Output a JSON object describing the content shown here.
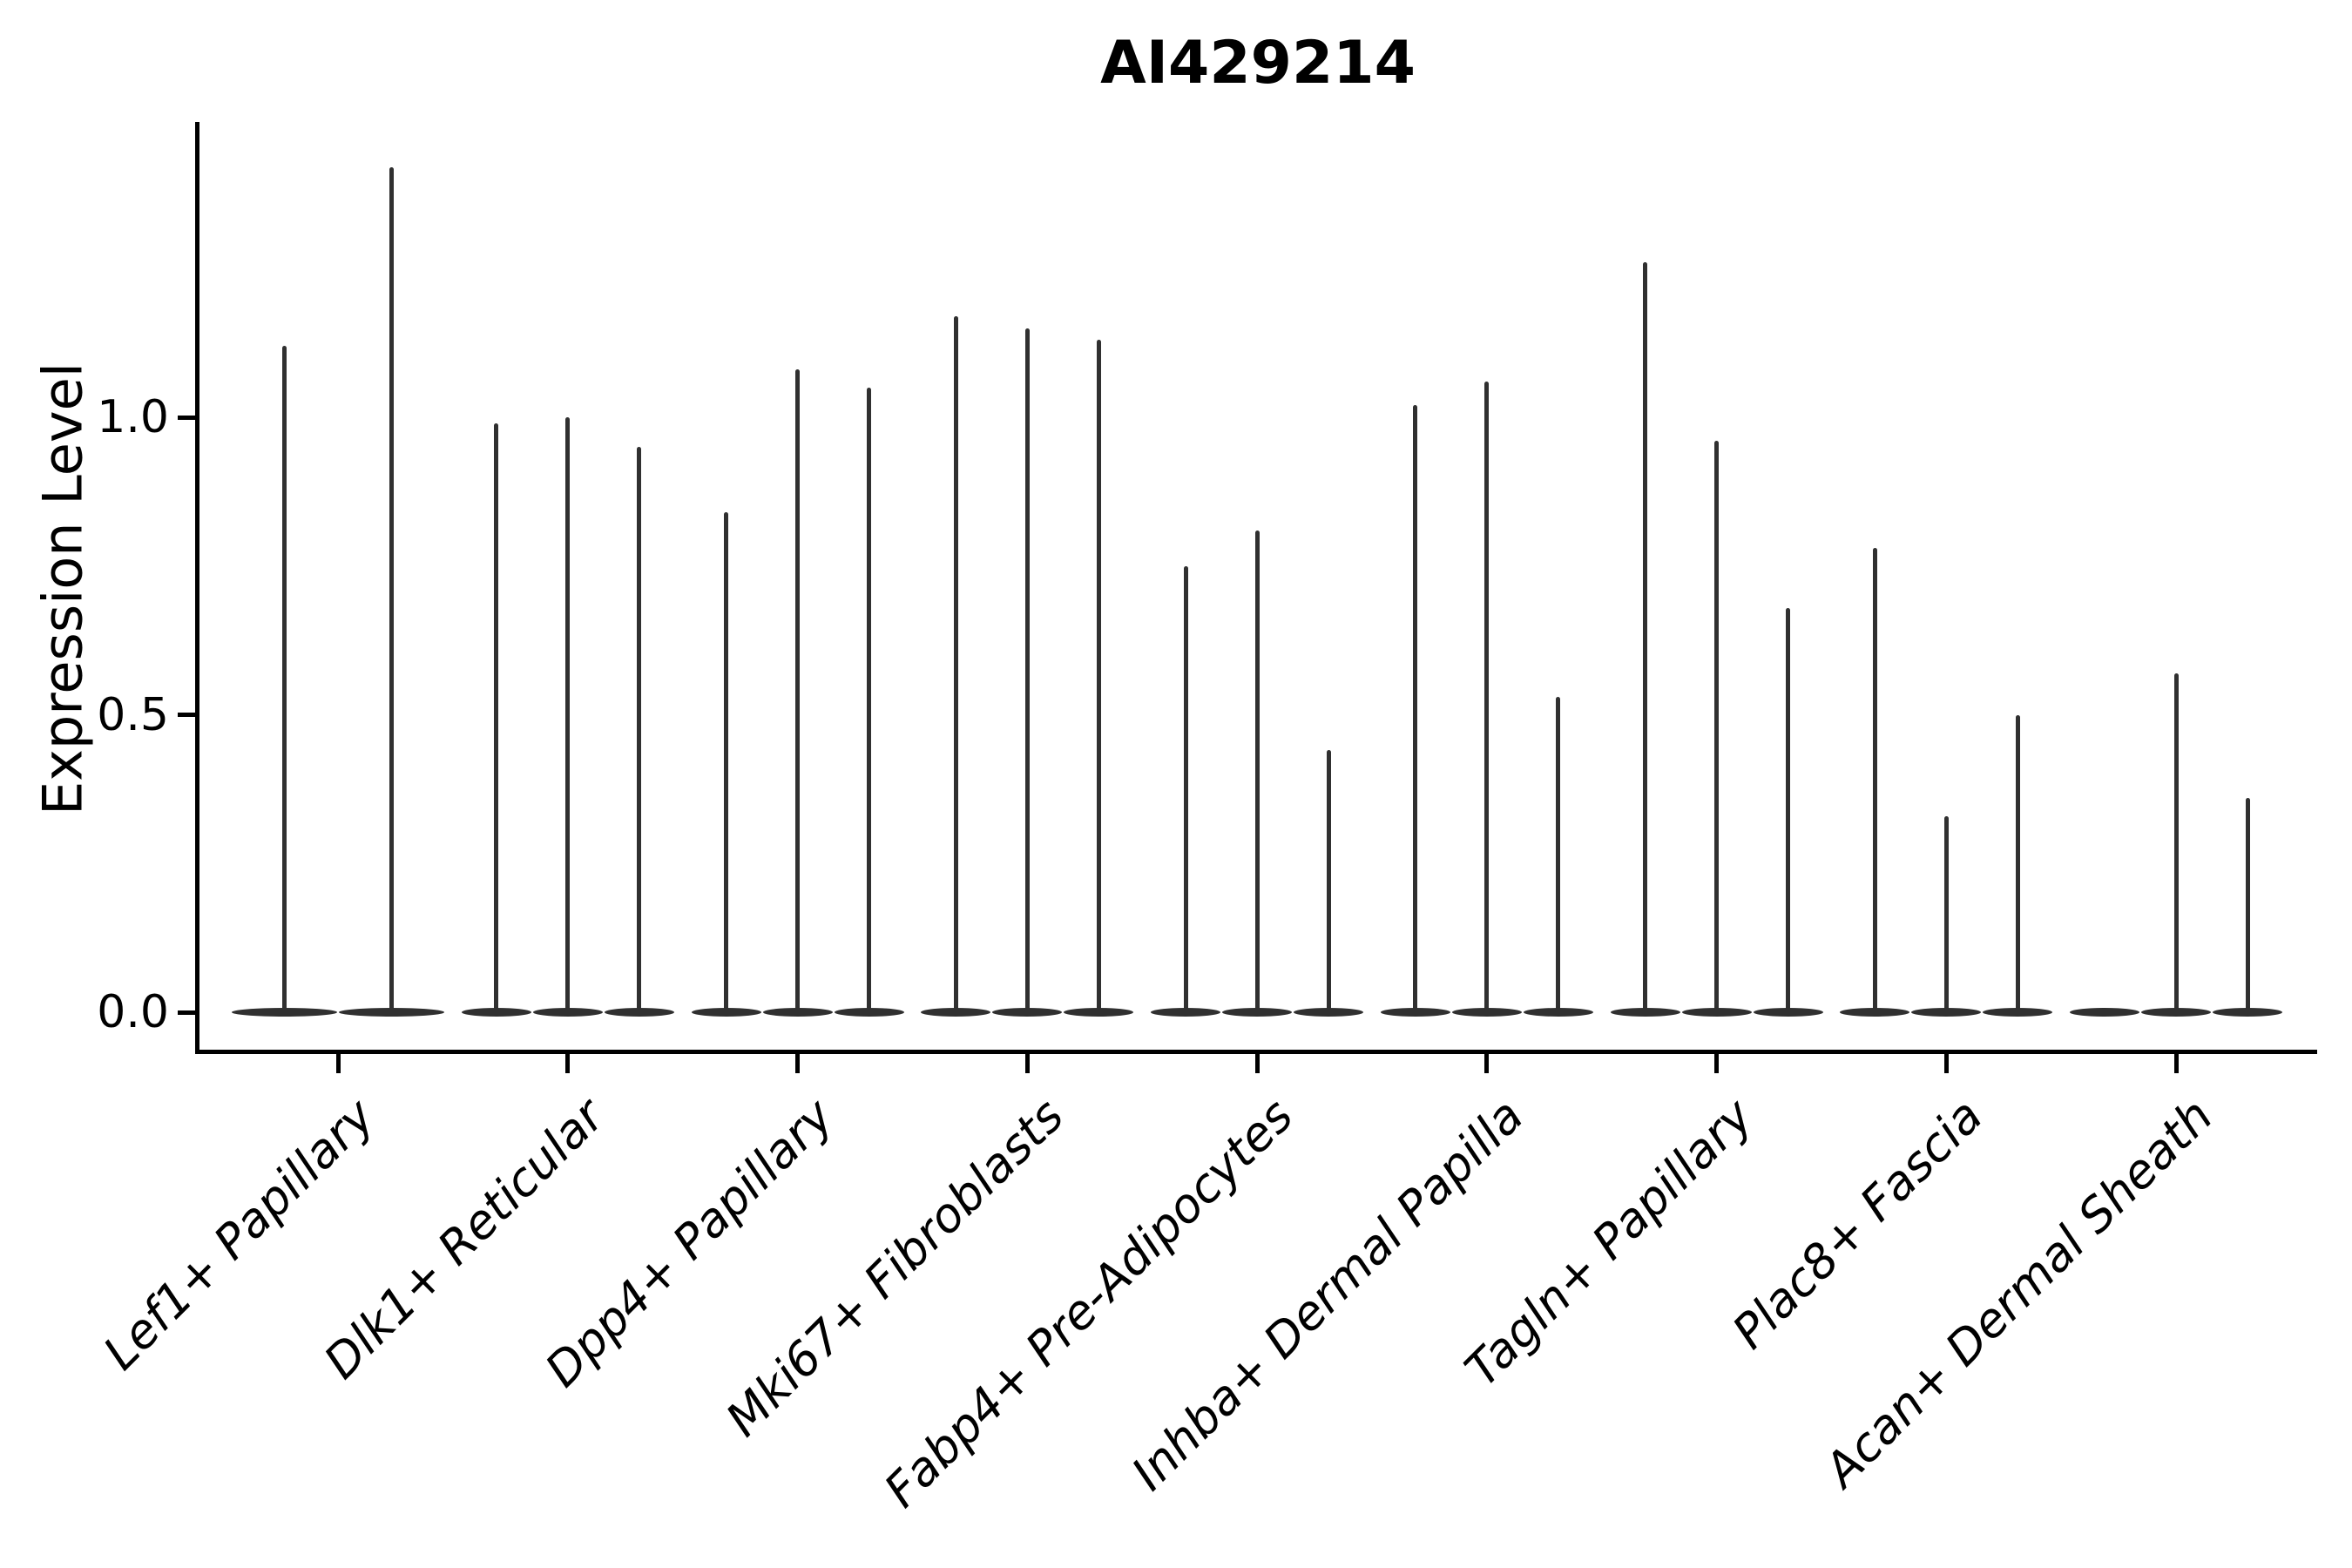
{
  "title": "AI429214",
  "axes": {
    "ylabel": "Expression Level",
    "ytick_labels": [
      "0.0",
      "0.5",
      "1.0"
    ]
  },
  "colors": {
    "ink": "#000000",
    "violin": "#303030",
    "background": "#ffffff"
  },
  "chart_data": {
    "type": "violin",
    "title": "AI429214",
    "xlabel": "",
    "ylabel": "Expression Level",
    "ylim": [
      -0.07,
      1.5
    ],
    "yticks": [
      0.0,
      0.5,
      1.0
    ],
    "ytick_labels": [
      "0.0",
      "0.5",
      "1.0"
    ],
    "grid": false,
    "legend": "none",
    "description": "Violin plot of gene AI429214 expression; violins are flat at 0 with thin vertical max-expression spikes; x tick labels italic, rotated 45 degrees",
    "categories": [
      "Lef1+ Papillary",
      "Dlk1+ Reticular",
      "Dpp4+ Papillary",
      "Mki67+ Fibroblasts",
      "Fabp4+ Pre-Adipocytes",
      "Inhba+ Dermal Papilla",
      "Tagln+ Papillary",
      "Plac8+ Fascia",
      "Acan+ Dermal Sheath"
    ],
    "groups": [
      {
        "category": "Lef1+ Papillary",
        "violin_max_values": [
          1.12,
          1.42
        ]
      },
      {
        "category": "Dlk1+ Reticular",
        "violin_max_values": [
          0.99,
          1.0,
          0.95
        ]
      },
      {
        "category": "Dpp4+ Papillary",
        "violin_max_values": [
          0.84,
          1.08,
          1.05
        ]
      },
      {
        "category": "Mki67+ Fibroblasts",
        "violin_max_values": [
          1.17,
          1.15,
          1.13
        ]
      },
      {
        "category": "Fabp4+ Pre-Adipocytes",
        "violin_max_values": [
          0.75,
          0.81,
          0.44
        ]
      },
      {
        "category": "Inhba+ Dermal Papilla",
        "violin_max_values": [
          1.02,
          1.06,
          0.53
        ]
      },
      {
        "category": "Tagln+ Papillary",
        "violin_max_values": [
          1.26,
          0.96,
          0.68
        ]
      },
      {
        "category": "Plac8+ Fascia",
        "violin_max_values": [
          0.78,
          0.33,
          0.5
        ]
      },
      {
        "category": "Acan+ Dermal Sheath",
        "violin_max_values": [
          0.0,
          0.57,
          0.36
        ]
      }
    ]
  }
}
